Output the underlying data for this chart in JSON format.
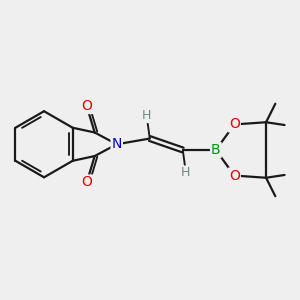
{
  "background_color": "#efefef",
  "atom_colors": {
    "C": "#000000",
    "N": "#0000cc",
    "O": "#ee0000",
    "B": "#009900",
    "H": "#6a8a8a"
  },
  "bond_color": "#1a1a1a",
  "bond_width": 1.6,
  "dbo": 0.055,
  "figsize": [
    3.0,
    3.0
  ],
  "dpi": 100,
  "font_size": 10
}
